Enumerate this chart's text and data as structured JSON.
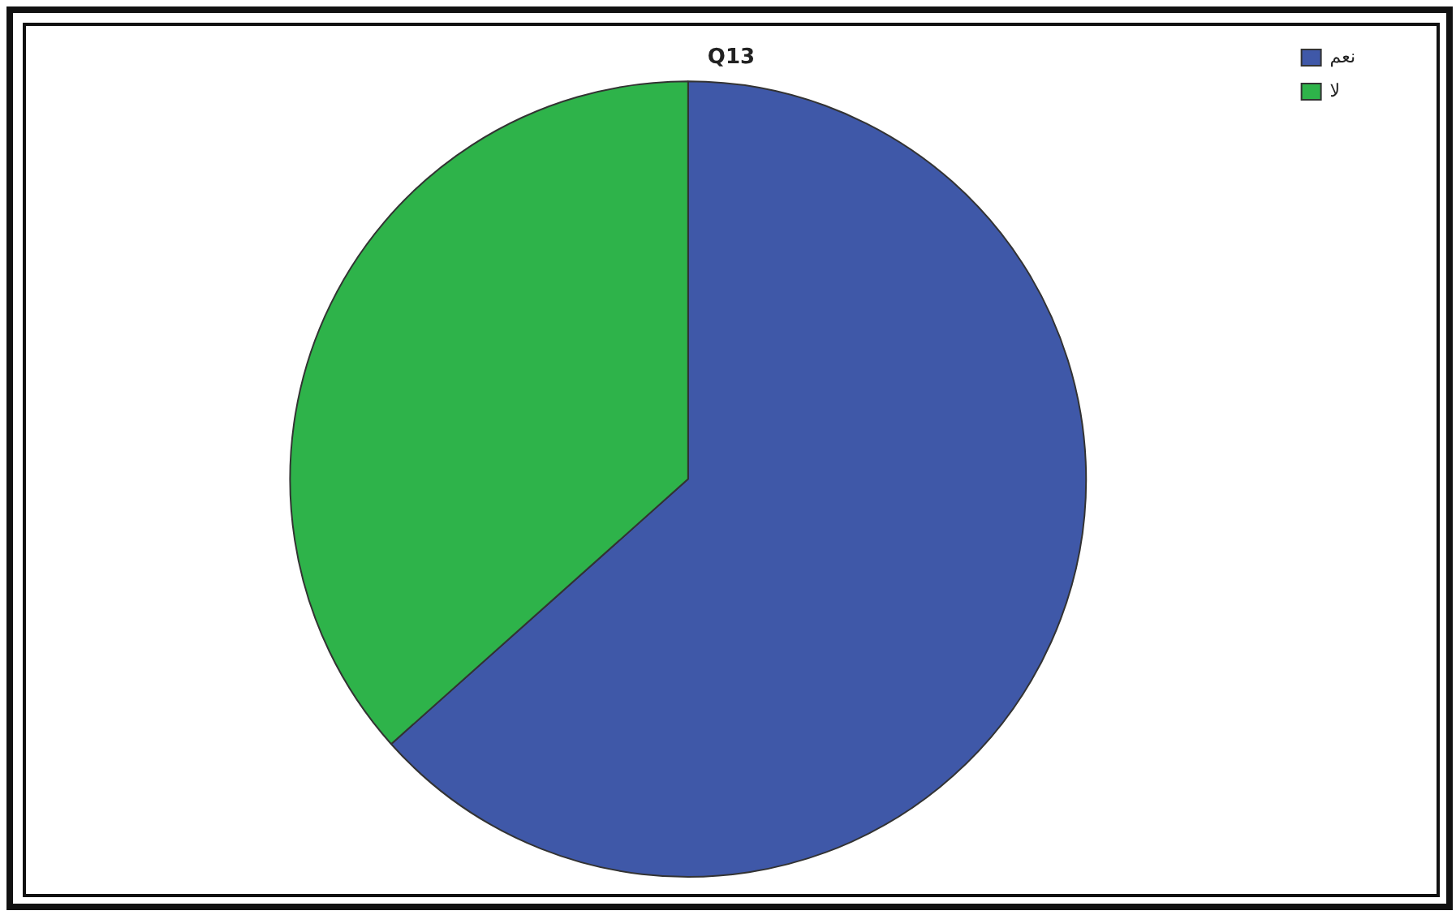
{
  "chart_data": {
    "type": "pie",
    "title": "Q13",
    "categories": [
      "نعم",
      "لا"
    ],
    "values": [
      63.4,
      36.6
    ],
    "colors": [
      "#3f58a8",
      "#2eb34a"
    ],
    "legend": "top right"
  }
}
